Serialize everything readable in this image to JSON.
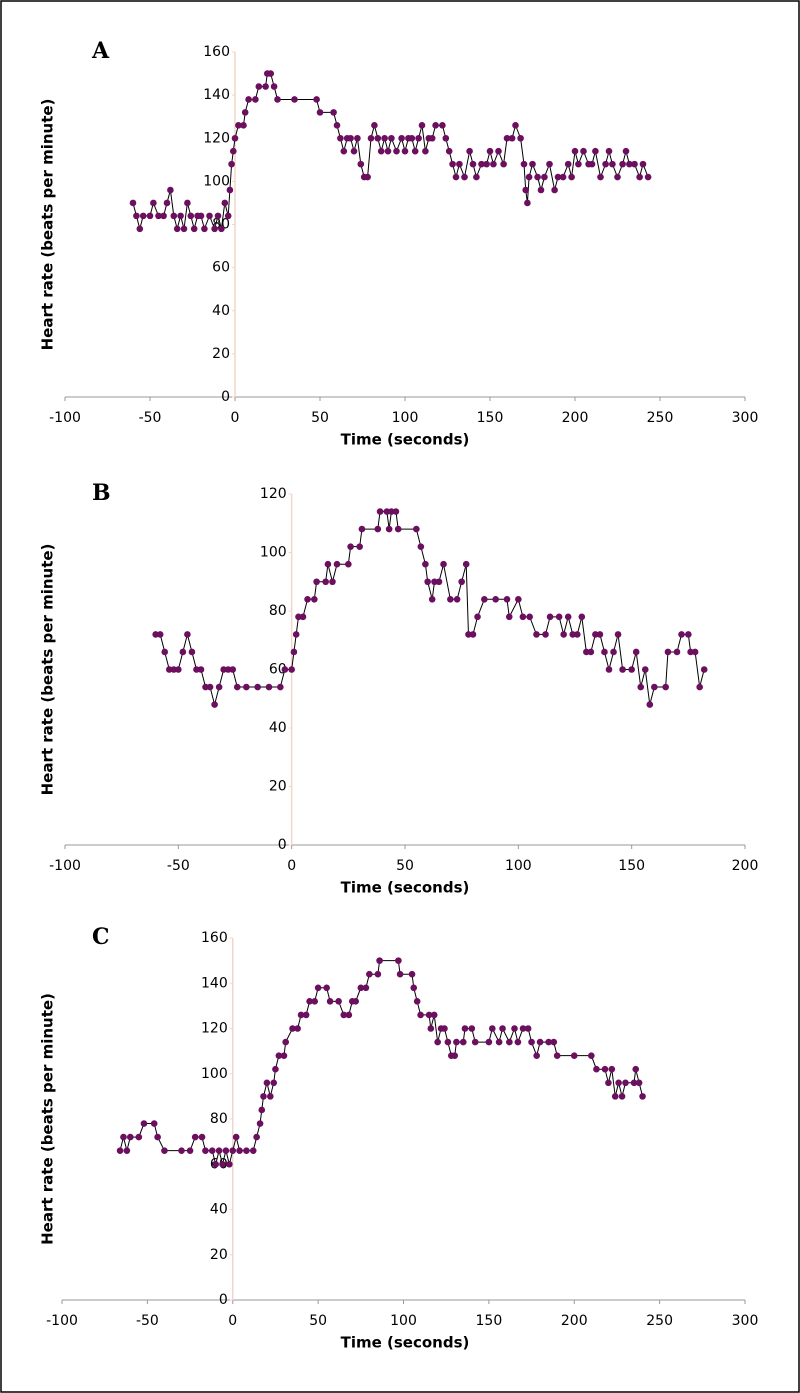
{
  "chart_data": [
    {
      "type": "scatter",
      "label": "A",
      "x_label": "Time (seconds)",
      "y_label": "Heart rate (beats per minute)",
      "color": "#6b0f5e",
      "line_color": "#000000",
      "xlim": [
        -100,
        300
      ],
      "xticks": [
        -100,
        -50,
        0,
        50,
        100,
        150,
        200,
        250,
        300
      ],
      "ylim": [
        0,
        160
      ],
      "yticks": [
        0,
        20,
        40,
        60,
        80,
        100,
        120,
        140,
        160
      ],
      "x": [
        -60,
        -58,
        -56,
        -54,
        -50,
        -48,
        -45,
        -42,
        -40,
        -38,
        -36,
        -34,
        -32,
        -30,
        -28,
        -26,
        -24,
        -22,
        -20,
        -18,
        -15,
        -12,
        -10,
        -8,
        -6,
        -4,
        -3,
        -2,
        -1,
        0,
        2,
        5,
        6,
        8,
        12,
        14,
        18,
        19,
        21,
        23,
        25,
        35,
        48,
        50,
        58,
        60,
        62,
        64,
        66,
        68,
        70,
        72,
        74,
        76,
        78,
        80,
        82,
        84,
        86,
        88,
        90,
        92,
        95,
        98,
        100,
        102,
        104,
        106,
        108,
        110,
        112,
        114,
        116,
        118,
        122,
        124,
        126,
        128,
        130,
        132,
        135,
        138,
        140,
        142,
        145,
        148,
        150,
        152,
        155,
        158,
        160,
        163,
        165,
        168,
        170,
        171,
        172,
        173,
        175,
        178,
        180,
        182,
        185,
        188,
        190,
        193,
        196,
        198,
        200,
        202,
        205,
        208,
        210,
        212,
        215,
        218,
        220,
        222,
        225,
        228,
        230,
        232,
        235,
        238,
        240,
        243
      ],
      "values": [
        90,
        84,
        78,
        84,
        84,
        90,
        84,
        84,
        90,
        96,
        84,
        78,
        84,
        78,
        90,
        84,
        78,
        84,
        84,
        78,
        84,
        78,
        84,
        78,
        90,
        84,
        96,
        108,
        114,
        120,
        126,
        126,
        132,
        138,
        138,
        144,
        144,
        150,
        150,
        144,
        138,
        138,
        138,
        132,
        132,
        126,
        120,
        114,
        120,
        120,
        114,
        120,
        108,
        102,
        102,
        120,
        126,
        120,
        114,
        120,
        114,
        120,
        114,
        120,
        114,
        120,
        120,
        114,
        120,
        126,
        114,
        120,
        120,
        126,
        126,
        120,
        114,
        108,
        102,
        108,
        102,
        114,
        108,
        102,
        108,
        108,
        114,
        108,
        114,
        108,
        120,
        120,
        126,
        120,
        108,
        96,
        90,
        102,
        108,
        102,
        96,
        102,
        108,
        96,
        102,
        102,
        108,
        102,
        114,
        108,
        114,
        108,
        108,
        114,
        102,
        108,
        114,
        108,
        102,
        108,
        114,
        108,
        108,
        102,
        108,
        102
      ]
    },
    {
      "type": "scatter",
      "label": "B",
      "x_label": "Time (seconds)",
      "y_label": "Heart rate (beats per minute)",
      "color": "#6b0f5e",
      "line_color": "#000000",
      "xlim": [
        -100,
        200
      ],
      "xticks": [
        -100,
        -50,
        0,
        50,
        100,
        150,
        200
      ],
      "ylim": [
        0,
        120
      ],
      "yticks": [
        0,
        20,
        40,
        60,
        80,
        100,
        120
      ],
      "x": [
        -60,
        -58,
        -56,
        -54,
        -52,
        -50,
        -48,
        -46,
        -44,
        -42,
        -40,
        -38,
        -36,
        -34,
        -32,
        -30,
        -28,
        -26,
        -24,
        -20,
        -15,
        -10,
        -5,
        -3,
        0,
        1,
        2,
        3,
        5,
        7,
        10,
        11,
        15,
        16,
        18,
        20,
        25,
        26,
        30,
        31,
        38,
        39,
        42,
        43,
        44,
        46,
        47,
        55,
        57,
        59,
        60,
        62,
        63,
        65,
        67,
        70,
        73,
        75,
        77,
        78,
        80,
        82,
        85,
        90,
        95,
        96,
        100,
        102,
        105,
        108,
        112,
        114,
        118,
        120,
        122,
        124,
        126,
        128,
        130,
        132,
        134,
        136,
        138,
        140,
        142,
        144,
        146,
        150,
        152,
        154,
        156,
        158,
        160,
        165,
        166,
        170,
        172,
        175,
        176,
        178,
        180,
        182
      ],
      "values": [
        72,
        72,
        66,
        60,
        60,
        60,
        66,
        72,
        66,
        60,
        60,
        54,
        54,
        48,
        54,
        60,
        60,
        60,
        54,
        54,
        54,
        54,
        54,
        60,
        60,
        66,
        72,
        78,
        78,
        84,
        84,
        90,
        90,
        96,
        90,
        96,
        96,
        102,
        102,
        108,
        108,
        114,
        114,
        108,
        114,
        114,
        108,
        108,
        102,
        96,
        90,
        84,
        90,
        90,
        96,
        84,
        84,
        90,
        96,
        72,
        72,
        78,
        84,
        84,
        84,
        78,
        84,
        78,
        78,
        72,
        72,
        78,
        78,
        72,
        78,
        72,
        72,
        78,
        66,
        66,
        72,
        72,
        66,
        60,
        66,
        72,
        60,
        60,
        66,
        54,
        60,
        48,
        54,
        54,
        66,
        66,
        72,
        72,
        66,
        66,
        54,
        60
      ]
    },
    {
      "type": "scatter",
      "label": "C",
      "x_label": "Time (seconds)",
      "y_label": "Heart rate (beats per minute)",
      "color": "#6b0f5e",
      "line_color": "#000000",
      "xlim": [
        -100,
        300
      ],
      "xticks": [
        -100,
        -50,
        0,
        50,
        100,
        150,
        200,
        250,
        300
      ],
      "ylim": [
        0,
        160
      ],
      "yticks": [
        0,
        20,
        40,
        60,
        80,
        100,
        120,
        140,
        160
      ],
      "x": [
        -66,
        -64,
        -62,
        -60,
        -55,
        -52,
        -46,
        -44,
        -40,
        -30,
        -25,
        -22,
        -18,
        -16,
        -12,
        -10,
        -8,
        -6,
        -4,
        -2,
        0,
        2,
        4,
        8,
        12,
        14,
        16,
        17,
        18,
        20,
        22,
        24,
        25,
        27,
        30,
        31,
        35,
        38,
        40,
        43,
        45,
        48,
        50,
        55,
        57,
        62,
        65,
        68,
        70,
        72,
        75,
        78,
        80,
        85,
        86,
        97,
        98,
        105,
        106,
        108,
        110,
        115,
        116,
        118,
        120,
        122,
        124,
        126,
        128,
        130,
        131,
        135,
        136,
        140,
        142,
        150,
        152,
        156,
        158,
        162,
        165,
        167,
        170,
        173,
        175,
        178,
        180,
        185,
        188,
        190,
        200,
        210,
        213,
        218,
        220,
        222,
        224,
        226,
        228,
        230,
        235,
        236,
        238,
        240
      ],
      "values": [
        66,
        72,
        66,
        72,
        72,
        78,
        78,
        72,
        66,
        66,
        66,
        72,
        72,
        66,
        66,
        60,
        66,
        60,
        66,
        60,
        66,
        72,
        66,
        66,
        66,
        72,
        78,
        84,
        90,
        96,
        90,
        96,
        102,
        108,
        108,
        114,
        120,
        120,
        126,
        126,
        132,
        132,
        138,
        138,
        132,
        132,
        126,
        126,
        132,
        132,
        138,
        138,
        144,
        144,
        150,
        150,
        144,
        144,
        138,
        132,
        126,
        126,
        120,
        126,
        114,
        120,
        120,
        114,
        108,
        108,
        114,
        114,
        120,
        120,
        114,
        114,
        120,
        114,
        120,
        114,
        120,
        114,
        120,
        120,
        114,
        108,
        114,
        114,
        114,
        108,
        108,
        108,
        102,
        102,
        96,
        102,
        90,
        96,
        90,
        96,
        96,
        102,
        96,
        90
      ]
    }
  ]
}
